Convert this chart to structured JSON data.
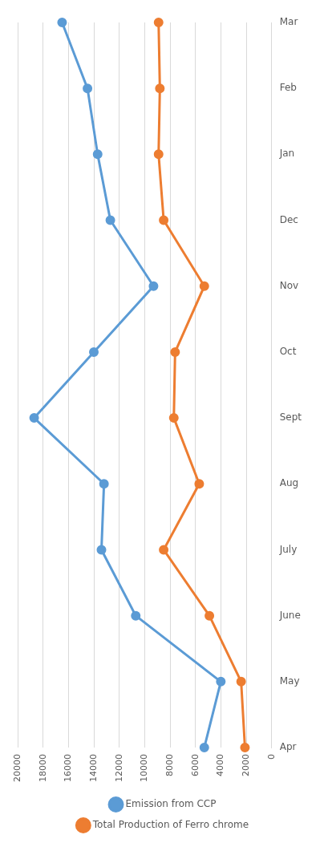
{
  "chart_data": {
    "type": "line",
    "orientation": "horizontal",
    "categories": [
      "Mar",
      "Feb",
      "Jan",
      "Dec",
      "Nov",
      "Oct",
      "Sept",
      "Aug",
      "July",
      "June",
      "May",
      "Apr"
    ],
    "series": [
      {
        "name": "Emission from CCP",
        "color": "#5b9bd5",
        "values": [
          16500,
          14500,
          13700,
          12700,
          9300,
          14000,
          18700,
          13200,
          13400,
          10700,
          4000,
          5300
        ]
      },
      {
        "name": "Total Production of Ferro chrome",
        "color": "#ed7d31",
        "values": [
          8900,
          8800,
          8900,
          8500,
          5300,
          7600,
          7700,
          5700,
          8500,
          4900,
          2400,
          2100
        ]
      }
    ],
    "xlim": [
      20000,
      0
    ],
    "xticks": [
      20000,
      18000,
      16000,
      14000,
      12000,
      10000,
      8000,
      6000,
      4000,
      2000,
      0
    ],
    "grid": "x",
    "legend": "bottom",
    "marker": "circle",
    "line_style": "solid"
  }
}
